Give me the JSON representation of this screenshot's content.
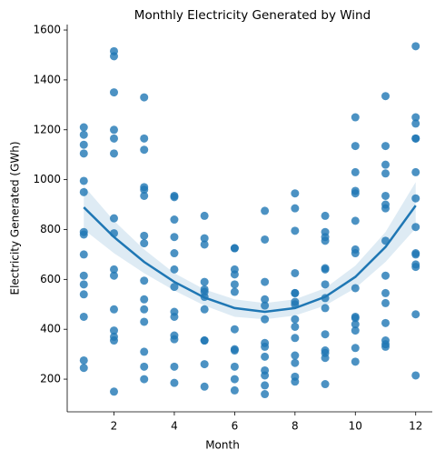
{
  "chart_data": {
    "type": "scatter",
    "title": "Monthly Electricity Generated by Wind",
    "xlabel": "Month",
    "ylabel": "Electricity Generated (GWh)",
    "color": "#1f77b4",
    "x": [
      1,
      1,
      1,
      1,
      1,
      1,
      1,
      1,
      1,
      1,
      1,
      1,
      1,
      1,
      1,
      2,
      2,
      2,
      2,
      2,
      2,
      2,
      2,
      2,
      2,
      2,
      2,
      2,
      2,
      2,
      3,
      3,
      3,
      3,
      3,
      3,
      3,
      3,
      3,
      3,
      3,
      3,
      3,
      3,
      3,
      4,
      4,
      4,
      4,
      4,
      4,
      4,
      4,
      4,
      4,
      4,
      4,
      4,
      5,
      5,
      5,
      5,
      5,
      5,
      5,
      5,
      5,
      5,
      5,
      5,
      6,
      6,
      6,
      6,
      6,
      6,
      6,
      6,
      6,
      6,
      6,
      6,
      7,
      7,
      7,
      7,
      7,
      7,
      7,
      7,
      7,
      7,
      7,
      7,
      7,
      8,
      8,
      8,
      8,
      8,
      8,
      8,
      8,
      8,
      8,
      8,
      8,
      8,
      8,
      8,
      9,
      9,
      9,
      9,
      9,
      9,
      9,
      9,
      9,
      9,
      9,
      9,
      9,
      9,
      10,
      10,
      10,
      10,
      10,
      10,
      10,
      10,
      10,
      10,
      10,
      10,
      10,
      10,
      10,
      11,
      11,
      11,
      11,
      11,
      11,
      11,
      11,
      11,
      11,
      11,
      11,
      11,
      11,
      11,
      12,
      12,
      12,
      12,
      12,
      12,
      12,
      12,
      12,
      12,
      12,
      12,
      12,
      12
    ],
    "values": [
      1210,
      1180,
      1140,
      1105,
      995,
      950,
      790,
      780,
      700,
      615,
      580,
      540,
      450,
      275,
      245,
      1515,
      1495,
      1350,
      1200,
      1165,
      1105,
      845,
      785,
      640,
      615,
      480,
      395,
      370,
      355,
      150,
      1330,
      1165,
      1120,
      970,
      960,
      935,
      775,
      745,
      595,
      520,
      480,
      430,
      310,
      250,
      200,
      935,
      930,
      840,
      770,
      705,
      640,
      570,
      470,
      450,
      375,
      360,
      250,
      185,
      855,
      765,
      740,
      590,
      560,
      550,
      530,
      480,
      355,
      355,
      260,
      170,
      725,
      725,
      640,
      620,
      580,
      550,
      400,
      320,
      315,
      250,
      200,
      155,
      875,
      760,
      590,
      520,
      495,
      440,
      345,
      330,
      290,
      235,
      215,
      175,
      140,
      945,
      885,
      795,
      625,
      545,
      545,
      510,
      500,
      440,
      410,
      365,
      295,
      265,
      210,
      190,
      855,
      790,
      770,
      755,
      645,
      640,
      580,
      525,
      485,
      380,
      315,
      305,
      285,
      180,
      1250,
      1135,
      1030,
      955,
      945,
      835,
      720,
      705,
      565,
      450,
      445,
      420,
      395,
      325,
      270,
      1335,
      1135,
      1060,
      1025,
      935,
      900,
      885,
      755,
      615,
      545,
      505,
      425,
      355,
      340,
      330,
      1535,
      1250,
      1225,
      1165,
      1165,
      1030,
      925,
      810,
      705,
      700,
      660,
      650,
      460,
      215
    ],
    "fit": {
      "x": [
        1,
        2,
        3,
        4,
        5,
        6,
        7,
        8,
        9,
        10,
        11,
        12
      ],
      "values": [
        889,
        770,
        670,
        590,
        527,
        485,
        470,
        485,
        530,
        610,
        730,
        896
      ],
      "lower": [
        800,
        705,
        625,
        555,
        495,
        450,
        440,
        455,
        495,
        565,
        670,
        805
      ],
      "upper": [
        975,
        835,
        720,
        625,
        560,
        520,
        505,
        520,
        565,
        655,
        790,
        990
      ]
    },
    "xlim": [
      0.45,
      12.55
    ],
    "ylim": [
      69,
      1622
    ],
    "xticks": [
      2,
      4,
      6,
      8,
      10,
      12
    ],
    "yticks": [
      200,
      400,
      600,
      800,
      1000,
      1200,
      1400,
      1600
    ]
  }
}
